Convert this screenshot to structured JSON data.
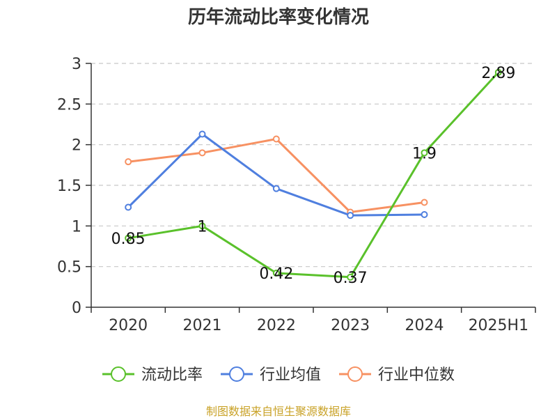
{
  "chart_data": {
    "type": "line",
    "title": "历年流动比率变化情况",
    "categories": [
      "2020",
      "2021",
      "2022",
      "2023",
      "2024",
      "2025H1"
    ],
    "ylim": [
      0,
      3
    ],
    "yticks": [
      "0",
      "0.5",
      "1",
      "1.5",
      "2",
      "2.5",
      "3"
    ],
    "grid": true,
    "legend_position": "bottom",
    "series": [
      {
        "name": "流动比率",
        "color": "#5ac12b",
        "values": [
          0.85,
          1,
          0.42,
          0.37,
          1.9,
          2.89
        ],
        "labels": [
          "0.85",
          "1",
          "0.42",
          "0.37",
          "1.9",
          "2.89"
        ]
      },
      {
        "name": "行业均值",
        "color": "#4f7fdf",
        "values": [
          1.23,
          2.13,
          1.46,
          1.13,
          1.14,
          null
        ]
      },
      {
        "name": "行业中位数",
        "color": "#f79162",
        "values": [
          1.79,
          1.9,
          2.07,
          1.17,
          1.29,
          null
        ]
      }
    ]
  },
  "source": "制图数据来自恒生聚源数据库"
}
